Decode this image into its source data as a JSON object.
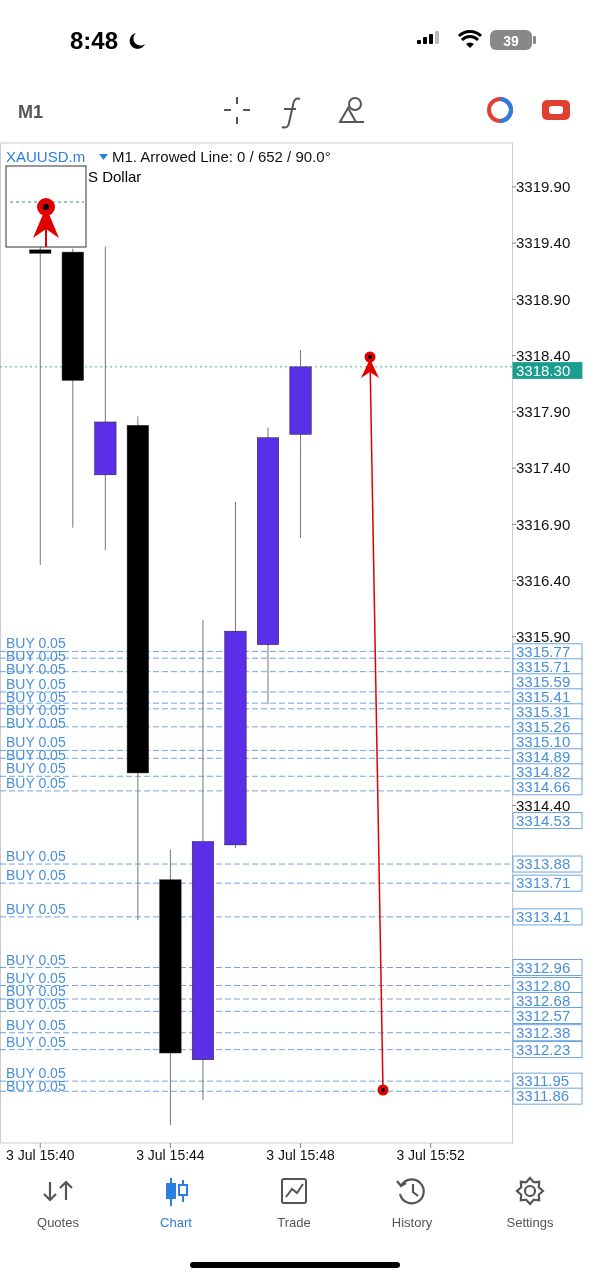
{
  "chart_data": {
    "type": "candlestick",
    "title": "XAUUSD.m",
    "subtitle": "M1. Arrowed Line: 0 / 652 / 90.0°",
    "annotations": [
      "S Dollar",
      "8:48",
      "39",
      "M1",
      "Quotes",
      "Chart",
      "Trade",
      "History",
      "Settings",
      "3318.30",
      "3315.77",
      "3315.71",
      "3315.59",
      "3315.41",
      "3315.31",
      "3315.26",
      "3315.10",
      "3314.89",
      "3314.82",
      "3314.66",
      "3314.53",
      "3313.88",
      "3313.71",
      "3313.41",
      "3312.96",
      "3312.80",
      "3312.68",
      "3312.57",
      "3312.38",
      "3312.23",
      "3311.95",
      "3311.86"
    ],
    "categories": [
      "3 Jul 15:40",
      null,
      null,
      null,
      "3 Jul 15:44",
      null,
      null,
      null,
      "3 Jul 15:48",
      null,
      null,
      null,
      "3 Jul 15:52",
      null,
      null
    ],
    "ohlc": [
      [
        3319.34,
        3319.37,
        3316.54,
        3319.31
      ],
      [
        3319.32,
        3319.35,
        3316.87,
        3318.18
      ],
      [
        3317.34,
        3319.37,
        3316.67,
        3317.81
      ],
      [
        3317.78,
        3317.86,
        3313.38,
        3314.69
      ],
      [
        3313.74,
        3314.01,
        3311.56,
        3312.2
      ],
      [
        3312.14,
        3316.05,
        3311.78,
        3314.08
      ],
      [
        3314.05,
        3317.1,
        3314.02,
        3315.95
      ],
      [
        3315.83,
        3317.76,
        3315.3,
        3317.67
      ],
      [
        3317.7,
        3318.45,
        3316.78,
        3318.3
      ],
      null,
      null,
      null,
      null,
      null,
      null
    ],
    "colors": [
      "#000000",
      "#000000",
      "#5b2ee8",
      "#000000",
      "#000000",
      "#5b2ee8",
      "#5b2ee8",
      "#5b2ee8",
      "#5b2ee8",
      null,
      null,
      null,
      null,
      null,
      null
    ],
    "ylim": [
      3311.4,
      3320.29
    ],
    "yticks": [
      {
        "value": 3319.9,
        "label": "3319.90"
      },
      {
        "value": 3319.4,
        "label": "3319.40"
      },
      {
        "value": 3318.9,
        "label": "3318.90"
      },
      {
        "value": 3318.4,
        "label": "3318.40"
      },
      {
        "value": 3317.9,
        "label": "3317.90"
      },
      {
        "value": 3317.4,
        "label": "3317.40"
      },
      {
        "value": 3316.9,
        "label": "3316.90"
      },
      {
        "value": 3316.4,
        "label": "3316.40"
      },
      {
        "value": 3315.9,
        "label": "3315.90"
      },
      {
        "value": 3314.4,
        "label": "3314.40"
      }
    ],
    "ref_lines": [
      {
        "axis": "y",
        "value": 3318.3,
        "label": null,
        "color": "#1a9e8f",
        "line_style": "dotted"
      },
      {
        "axis": "y",
        "value": 3315.77,
        "label": "BUY 0.05",
        "color": "#4a90d9",
        "line_style": "dashed"
      },
      {
        "axis": "y",
        "value": 3315.71,
        "label": "BUY 0.05",
        "color": "#4a90d9",
        "line_style": "dashed"
      },
      {
        "axis": "y",
        "value": 3315.59,
        "label": "BUY 0.05",
        "color": "#4a90d9",
        "line_style": "dashed"
      },
      {
        "axis": "y",
        "value": 3315.41,
        "label": "BUY 0.05",
        "color": "#4a90d9",
        "line_style": "dashed"
      },
      {
        "axis": "y",
        "value": 3315.31,
        "label": "BUY 0.05",
        "color": "#4a90d9",
        "line_style": "dashed"
      },
      {
        "axis": "y",
        "value": 3315.26,
        "label": "BUY 0.05",
        "color": "#4a90d9",
        "line_style": "dashed"
      },
      {
        "axis": "y",
        "value": 3315.1,
        "label": "BUY 0.05",
        "color": "#4a90d9",
        "line_style": "dashed"
      },
      {
        "axis": "y",
        "value": 3314.89,
        "label": "BUY 0.05",
        "color": "#4a90d9",
        "line_style": "dashed"
      },
      {
        "axis": "y",
        "value": 3314.82,
        "label": "BUY 0.05",
        "color": "#4a90d9",
        "line_style": "dashed"
      },
      {
        "axis": "y",
        "value": 3314.66,
        "label": "BUY 0.05",
        "color": "#4a90d9",
        "line_style": "dashed"
      },
      {
        "axis": "y",
        "value": 3314.53,
        "label": "BUY 0.05",
        "color": "#4a90d9",
        "line_style": "dashed"
      },
      {
        "axis": "y",
        "value": 3313.88,
        "label": "BUY 0.05",
        "color": "#4a90d9",
        "line_style": "dashed"
      },
      {
        "axis": "y",
        "value": 3313.71,
        "label": "BUY 0.05",
        "color": "#4a90d9",
        "line_style": "dashed"
      },
      {
        "axis": "y",
        "value": 3313.41,
        "label": "BUY 0.05",
        "color": "#4a90d9",
        "line_style": "dashed"
      },
      {
        "axis": "y",
        "value": 3312.96,
        "label": "BUY 0.05",
        "color": "#4a90d9",
        "line_style": "dashed"
      },
      {
        "axis": "y",
        "value": 3312.8,
        "label": "BUY 0.05",
        "color": "#4a90d9",
        "line_style": "dashed"
      },
      {
        "axis": "y",
        "value": 3312.68,
        "label": "BUY 0.05",
        "color": "#4a90d9",
        "line_style": "dashed"
      },
      {
        "axis": "y",
        "value": 3312.57,
        "label": "BUY 0.05",
        "color": "#4a90d9",
        "line_style": "dashed"
      },
      {
        "axis": "y",
        "value": 3312.38,
        "label": "BUY 0.05",
        "color": "#4a90d9",
        "line_style": "dashed"
      },
      {
        "axis": "y",
        "value": 3312.23,
        "label": "BUY 0.05",
        "color": "#4a90d9",
        "line_style": "dashed"
      },
      {
        "axis": "y",
        "value": 3311.95,
        "label": "BUY 0.05",
        "color": "#4a90d9",
        "line_style": "dashed"
      },
      {
        "axis": "y",
        "value": 3311.86,
        "label": "BUY 0.05",
        "color": "#4a90d9",
        "line_style": "dashed"
      }
    ]
  }
}
